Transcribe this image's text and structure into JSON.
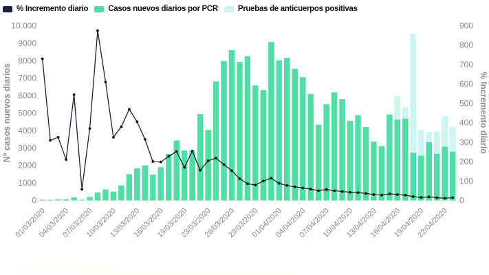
{
  "legend": {
    "items": [
      {
        "label": "% Incremento diario",
        "color": "#141F4B"
      },
      {
        "label": "Casos nuevos diarios por PCR",
        "color": "#4DDFA4"
      },
      {
        "label": "Pruebas de anticuerpos positivas",
        "color": "#CDF4F1"
      }
    ]
  },
  "colors": {
    "bar_pcr": "#4DDFA4",
    "bar_antibody": "#CDF4F1",
    "line": "#1C2230",
    "dot": "#121212",
    "tick_text": "#8B8B8B",
    "axis_title": "#8E8E8E",
    "baseline": "#EDEDED"
  },
  "chart_data": {
    "type": "bar",
    "subtype": "stacked-bars-with-percentage-line",
    "title": "",
    "xlabel": "",
    "left_axis": {
      "title": "Nº casos nuevos diarios",
      "range": [
        0,
        10000
      ],
      "ticks": [
        {
          "label": "0",
          "value": 0
        },
        {
          "label": "1000",
          "value": 1000
        },
        {
          "label": "2000",
          "value": 2000
        },
        {
          "label": "3000",
          "value": 3000
        },
        {
          "label": "4000",
          "value": 4000
        },
        {
          "label": "5000",
          "value": 5000
        },
        {
          "label": "6000",
          "value": 6000
        },
        {
          "label": "7000",
          "value": 7000
        },
        {
          "label": "8000",
          "value": 8000
        },
        {
          "label": "9000",
          "value": 9000
        },
        {
          "label": "10.000",
          "value": 10000
        }
      ]
    },
    "right_axis": {
      "title": "% Incremento diario",
      "range": [
        0,
        900
      ],
      "ticks": [
        {
          "label": "0",
          "value": 0
        },
        {
          "label": "100",
          "value": 100
        },
        {
          "label": "200",
          "value": 200
        },
        {
          "label": "300",
          "value": 300
        },
        {
          "label": "400",
          "value": 400
        },
        {
          "label": "500",
          "value": 500
        },
        {
          "label": "600",
          "value": 600
        },
        {
          "label": "700",
          "value": 700
        },
        {
          "label": "800",
          "value": 800
        },
        {
          "label": "900",
          "value": 900
        }
      ]
    },
    "grid": false,
    "legend_position": "top-left",
    "categories": [
      "01/03/2020",
      "02/03/2020",
      "03/03/2020",
      "04/03/2020",
      "05/03/2020",
      "06/03/2020",
      "07/03/2020",
      "08/03/2020",
      "09/03/2020",
      "10/03/2020",
      "11/03/2020",
      "12/03/2020",
      "13/03/2020",
      "14/03/2020",
      "15/03/2020",
      "16/03/2020",
      "17/03/2020",
      "18/03/2020",
      "19/03/2020",
      "20/03/2020",
      "21/03/2020",
      "23/03/2020",
      "24/03/2020",
      "25/03/2020",
      "26/03/2020",
      "27/03/2020",
      "28/03/2020",
      "29/03/2020",
      "30/03/2020",
      "31/03/2020",
      "01/04/2020",
      "02/04/2020",
      "03/04/2020",
      "04/04/2020",
      "05/04/2020",
      "06/04/2020",
      "07/04/2020",
      "08/04/2020",
      "09/04/2020",
      "10/04/2020",
      "11/04/2020",
      "12/04/2020",
      "13/04/2020",
      "14/04/2020",
      "15/04/2020",
      "16/04/2020",
      "17/04/2020",
      "18/04/2020",
      "19/04/2020",
      "20/04/2020",
      "21/04/2020",
      "22/04/2020",
      "23/04/2020"
    ],
    "x_tick_labels": [
      "01/03/2020",
      "04/03/2020",
      "07/03/2020",
      "10/03/2020",
      "13/03/2020",
      "16/03/2020",
      "19/03/2020",
      "23/03/2020",
      "26/03/2020",
      "29/03/2020",
      "01/04/2020",
      "04/04/2020",
      "07/04/2020",
      "10/04/2020",
      "13/04/2020",
      "16/04/2020",
      "19/04/2020",
      "22/04/2020"
    ],
    "x_tick_every_n_bars": 3,
    "series": [
      {
        "name": "Casos nuevos diarios por PCR",
        "axis": "left",
        "values": [
          40,
          30,
          50,
          60,
          170,
          40,
          200,
          460,
          630,
          500,
          850,
          1500,
          1840,
          2000,
          1480,
          1900,
          2660,
          3430,
          2860,
          2860,
          4940,
          4030,
          6820,
          7970,
          8610,
          7930,
          8260,
          6580,
          6320,
          9070,
          8020,
          8160,
          7540,
          7060,
          6100,
          4330,
          5510,
          6190,
          5800,
          4560,
          4880,
          4200,
          3370,
          3110,
          4920,
          4630,
          4680,
          2730,
          2560,
          3340,
          2670,
          3080,
          2790
        ]
      },
      {
        "name": "Pruebas de anticuerpos positivas (altura total de barra)",
        "axis": "left",
        "values": [
          null,
          null,
          null,
          null,
          null,
          null,
          null,
          null,
          null,
          null,
          null,
          null,
          null,
          null,
          null,
          null,
          null,
          null,
          null,
          null,
          null,
          null,
          null,
          null,
          null,
          null,
          null,
          null,
          null,
          null,
          null,
          null,
          null,
          null,
          null,
          null,
          null,
          null,
          null,
          null,
          null,
          null,
          null,
          null,
          null,
          5970,
          5330,
          9550,
          4040,
          3910,
          3950,
          4810,
          4220
        ]
      },
      {
        "name": "% Incremento diario",
        "axis": "right",
        "values": [
          730,
          310,
          325,
          210,
          545,
          57,
          370,
          875,
          610,
          325,
          380,
          470,
          405,
          315,
          200,
          198,
          227,
          252,
          170,
          254,
          155,
          204,
          218,
          185,
          153,
          112,
          86,
          79,
          100,
          115,
          88,
          77,
          70,
          64,
          58,
          50,
          56,
          50,
          46,
          42,
          40,
          36,
          30,
          27,
          34,
          30,
          27,
          20,
          15,
          18,
          14,
          11,
          14
        ]
      }
    ]
  }
}
